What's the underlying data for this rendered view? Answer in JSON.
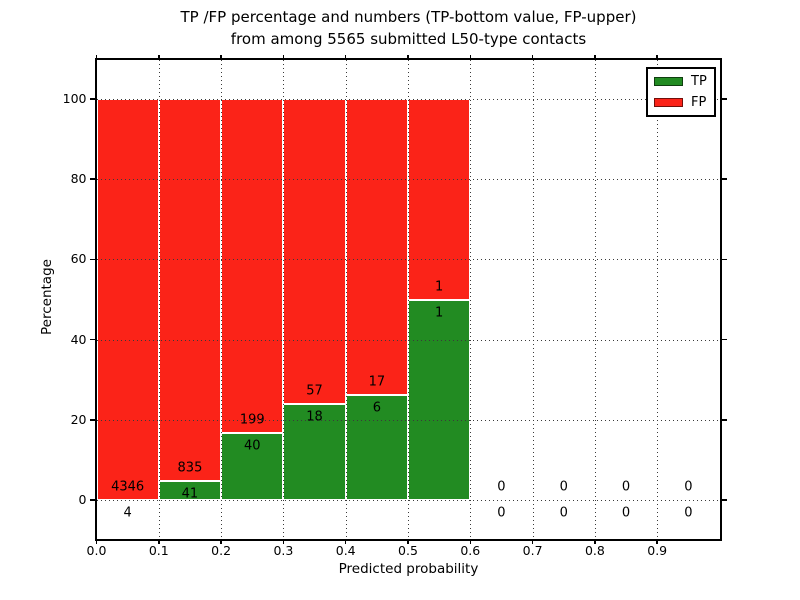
{
  "figure": {
    "title_line1": "TP /FP percentage and numbers (TP-bottom value, FP-upper)",
    "title_line2": "from among 5565 submitted L50-type contacts"
  },
  "axes": {
    "xlabel": "Predicted probability",
    "ylabel": "Percentage",
    "x_ticks": [
      "0.0",
      "0.1",
      "0.2",
      "0.3",
      "0.4",
      "0.5",
      "0.6",
      "0.7",
      "0.8",
      "0.9"
    ],
    "y_ticks": [
      "0",
      "20",
      "40",
      "60",
      "80",
      "100"
    ]
  },
  "colors": {
    "tp_green": "#228b22",
    "fp_red": "#fb2318",
    "grid": "#3a3a3a",
    "spine": "#000000",
    "background": "#ffffff"
  },
  "chart_data": {
    "type": "bar",
    "stacked": true,
    "normalized": "each 0.1-wide bin scaled to 100%",
    "title": "TP /FP percentage and numbers (TP-bottom value, FP-upper) from among 5565 submitted L50-type contacts",
    "xlabel": "Predicted probability",
    "ylabel": "Percentage",
    "xlim": [
      0.0,
      1.0
    ],
    "ylim": [
      -10,
      110
    ],
    "grid": true,
    "legend_position": "upper right",
    "total_contacts": 5565,
    "bin_edges": [
      0.0,
      0.1,
      0.2,
      0.3,
      0.4,
      0.5,
      0.6,
      0.7,
      0.8,
      0.9,
      1.0
    ],
    "series": [
      {
        "name": "TP",
        "color": "#228b22",
        "counts": [
          4,
          41,
          40,
          18,
          6,
          1,
          0,
          0,
          0,
          0
        ],
        "percent_of_bin": [
          0.09,
          4.68,
          16.74,
          24.0,
          26.09,
          50.0,
          0,
          0,
          0,
          0
        ]
      },
      {
        "name": "FP",
        "color": "#fb2318",
        "counts": [
          4346,
          835,
          199,
          57,
          17,
          1,
          0,
          0,
          0,
          0
        ],
        "percent_of_bin": [
          99.91,
          95.32,
          83.26,
          76.0,
          73.91,
          50.0,
          0,
          0,
          0,
          0
        ]
      }
    ]
  }
}
